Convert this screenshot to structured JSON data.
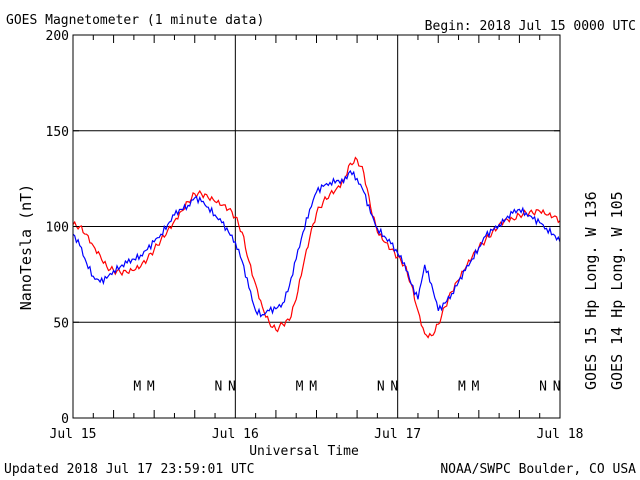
{
  "header": {
    "title": "GOES Magnetometer (1 minute data)",
    "begin": "Begin:  2018 Jul 15 0000 UTC"
  },
  "footer": {
    "updated": "Updated 2018 Jul 17 23:59:01 UTC",
    "source": "NOAA/SWPC Boulder, CO USA"
  },
  "colors": {
    "goes15": "#ff0000",
    "goes14": "#0000ff",
    "axis": "#000000"
  },
  "chart_data": {
    "type": "line",
    "xlabel": "Universal Time",
    "ylabel": "NanoTesla (nT)",
    "ylim": [
      0,
      200
    ],
    "xlim": [
      0,
      72
    ],
    "x_unit": "hours since 2018 Jul 15 0000 UTC",
    "x_ticks": [
      {
        "x": 0,
        "label": "Jul 15"
      },
      {
        "x": 24,
        "label": "Jul 16"
      },
      {
        "x": 48,
        "label": "Jul 17"
      },
      {
        "x": 72,
        "label": "Jul 18"
      }
    ],
    "y_ticks": [
      0,
      50,
      100,
      150,
      200
    ],
    "grid": true,
    "series": [
      {
        "name": "GOES 15 Hp  Long. W 136",
        "color": "#ff0000",
        "x": [
          0,
          1,
          2,
          3,
          4,
          5,
          6,
          7,
          8,
          9,
          10,
          11,
          12,
          13,
          14,
          15,
          16,
          17,
          18,
          19,
          20,
          21,
          22,
          23,
          24,
          25,
          26,
          27,
          28,
          29,
          30,
          31,
          32,
          33,
          34,
          35,
          36,
          37,
          38,
          39,
          40,
          41,
          42,
          43,
          44,
          45,
          46,
          47,
          48,
          49,
          50,
          51,
          52,
          53,
          54,
          55,
          56,
          57,
          58,
          59,
          60,
          61,
          62,
          63,
          64,
          65,
          66,
          67,
          68,
          69,
          70,
          71,
          72
        ],
        "values": [
          101,
          100,
          96,
          90,
          85,
          79,
          77,
          76,
          76,
          77,
          79,
          83,
          88,
          93,
          98,
          103,
          108,
          113,
          117,
          117,
          115,
          113,
          111,
          109,
          105,
          97,
          82,
          70,
          58,
          50,
          46,
          49,
          51,
          62,
          79,
          94,
          107,
          113,
          117,
          120,
          124,
          133,
          135,
          128,
          110,
          97,
          92,
          88,
          84,
          80,
          70,
          56,
          44,
          43,
          49,
          58,
          66,
          72,
          78,
          84,
          89,
          93,
          97,
          101,
          104,
          104,
          106,
          107,
          107,
          108,
          106,
          105,
          103
        ]
      },
      {
        "name": "GOES 14 Hp  Long. W 105",
        "color": "#0000ff",
        "x": [
          0,
          1,
          2,
          3,
          4,
          5,
          6,
          7,
          8,
          9,
          10,
          11,
          12,
          13,
          14,
          15,
          16,
          17,
          18,
          19,
          20,
          21,
          22,
          23,
          24,
          25,
          26,
          27,
          28,
          29,
          30,
          31,
          32,
          33,
          34,
          35,
          36,
          37,
          38,
          39,
          40,
          41,
          42,
          43,
          44,
          45,
          46,
          47,
          48,
          49,
          50,
          51,
          52,
          53,
          54,
          55,
          56,
          57,
          58,
          59,
          60,
          61,
          62,
          63,
          64,
          65,
          66,
          67,
          68,
          69,
          70,
          71,
          72
        ],
        "values": [
          96,
          90,
          81,
          74,
          71,
          73,
          77,
          79,
          81,
          83,
          85,
          88,
          92,
          96,
          101,
          106,
          109,
          111,
          115,
          113,
          110,
          106,
          102,
          97,
          92,
          82,
          68,
          56,
          54,
          56,
          57,
          60,
          69,
          83,
          97,
          109,
          118,
          121,
          123,
          124,
          123,
          129,
          125,
          118,
          107,
          99,
          95,
          91,
          86,
          81,
          70,
          62,
          80,
          70,
          56,
          60,
          65,
          71,
          77,
          83,
          89,
          95,
          98,
          101,
          104,
          107,
          109,
          107,
          104,
          102,
          99,
          96,
          92
        ]
      }
    ],
    "annotations": [
      {
        "x": 9.5,
        "y": 17,
        "text": "M",
        "color": "#0000ff"
      },
      {
        "x": 11.5,
        "y": 17,
        "text": "M",
        "color": "#ff0000"
      },
      {
        "x": 21.5,
        "y": 17,
        "text": "N",
        "color": "#0000ff"
      },
      {
        "x": 23.5,
        "y": 17,
        "text": "N",
        "color": "#ff0000"
      },
      {
        "x": 33.5,
        "y": 17,
        "text": "M",
        "color": "#0000ff"
      },
      {
        "x": 35.5,
        "y": 17,
        "text": "M",
        "color": "#ff0000"
      },
      {
        "x": 45.5,
        "y": 17,
        "text": "N",
        "color": "#0000ff"
      },
      {
        "x": 47.5,
        "y": 17,
        "text": "N",
        "color": "#ff0000"
      },
      {
        "x": 57.5,
        "y": 17,
        "text": "M",
        "color": "#0000ff"
      },
      {
        "x": 59.5,
        "y": 17,
        "text": "M",
        "color": "#ff0000"
      },
      {
        "x": 69.5,
        "y": 17,
        "text": "N",
        "color": "#0000ff"
      },
      {
        "x": 71.5,
        "y": 17,
        "text": "N",
        "color": "#ff0000"
      }
    ]
  }
}
